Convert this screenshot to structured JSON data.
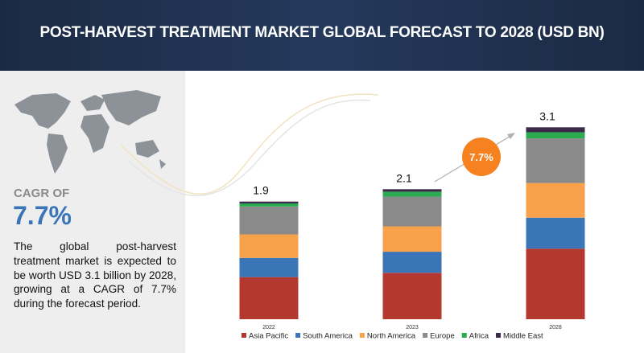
{
  "chart_data": {
    "type": "stacked_bar",
    "title": "POST-HARVEST TREATMENT MARKET GLOBAL FORECAST TO 2028 (USD BN)",
    "cagr_label": "CAGR OF",
    "cagr_value": "7.7%",
    "description": "The global post-harvest treatment market is expected to be worth USD 3.1 billion by 2028, growing at a CAGR of 7.7% during the forecast period.",
    "badge": "7.7%",
    "categories": [
      "2022",
      "2023",
      "2028"
    ],
    "totals": [
      1.9,
      2.1,
      3.1
    ],
    "series": [
      {
        "name": "Asia Pacific",
        "color": "#b5382f",
        "values": [
          0.68,
          0.75,
          1.14
        ]
      },
      {
        "name": "South America",
        "color": "#3a75b8",
        "values": [
          0.31,
          0.34,
          0.5
        ]
      },
      {
        "name": "North America",
        "color": "#f7a24a",
        "values": [
          0.38,
          0.41,
          0.56
        ]
      },
      {
        "name": "Europe",
        "color": "#8a8a8a",
        "values": [
          0.45,
          0.48,
          0.72
        ]
      },
      {
        "name": "Africa",
        "color": "#2bab4f",
        "values": [
          0.05,
          0.08,
          0.1
        ]
      },
      {
        "name": "Middle East",
        "color": "#3b2a4a",
        "values": [
          0.03,
          0.04,
          0.08
        ]
      }
    ]
  }
}
